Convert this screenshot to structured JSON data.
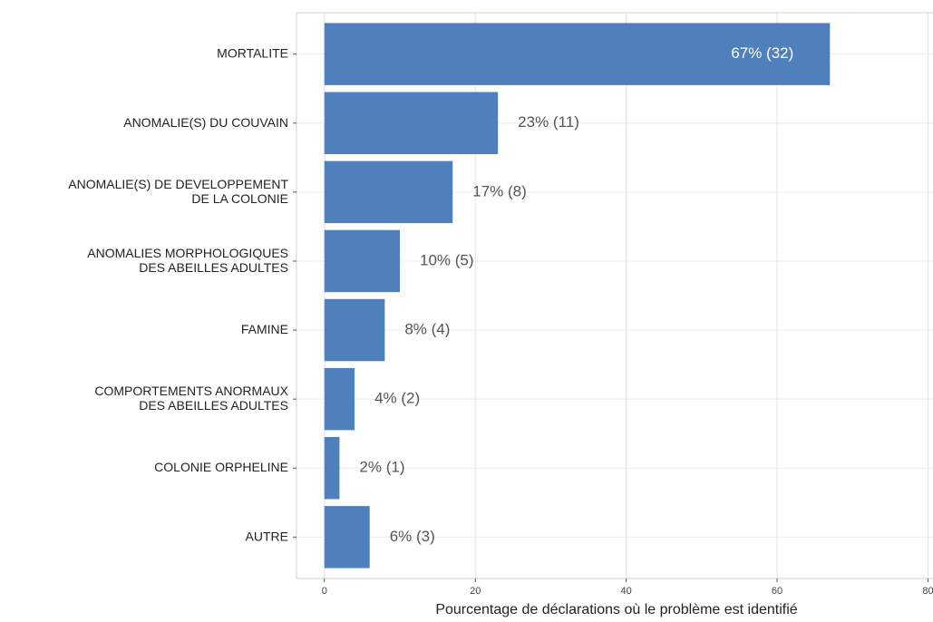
{
  "chart_data": {
    "type": "hbar",
    "x_label": "Pourcentage de déclarations où le problème est identifié",
    "categories": [
      "MORTALITE",
      "ANOMALIE(S) DU COUVAIN",
      "ANOMALIE(S) DE DEVELOPPEMENT\nDE LA COLONIE",
      "ANOMALIES MORPHOLOGIQUES\nDES ABEILLES ADULTES",
      "FAMINE",
      "COMPORTEMENTS ANORMAUX\nDES ABEILLES ADULTES",
      "COLONIE ORPHELINE",
      "AUTRE"
    ],
    "values": [
      67,
      23,
      17,
      10,
      8,
      4,
      2,
      6
    ],
    "value_labels": [
      "67% (32)",
      "23% (11)",
      "17% (8)",
      "10% (5)",
      "8% (4)",
      "4% (2)",
      "2% (1)",
      "6% (3)"
    ],
    "color": "#5080bb",
    "xlim": [
      -3.7,
      80.7
    ],
    "xticks": [
      0,
      20,
      40,
      60,
      80
    ],
    "grid": true
  }
}
